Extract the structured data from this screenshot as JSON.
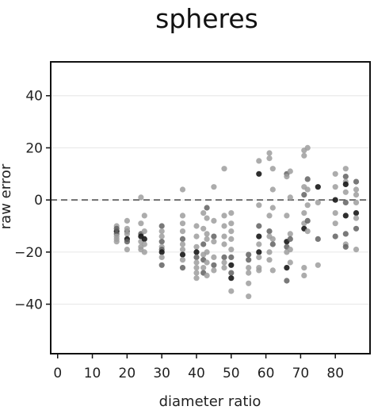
{
  "chart_data": {
    "type": "scatter",
    "title": "spheres",
    "xlabel": "diameter ratio",
    "ylabel": "raw error",
    "xlim": [
      -2,
      90
    ],
    "ylim": [
      -59,
      53
    ],
    "x_ticks": [
      0,
      10,
      20,
      30,
      40,
      50,
      60,
      70,
      80
    ],
    "y_ticks": [
      -40,
      -20,
      0,
      20,
      40
    ],
    "grid": "horizontal",
    "reference_line": {
      "y": 0,
      "style": "dashed"
    },
    "colors": {
      "light": "#9e9e9e",
      "medium": "#616161",
      "dark": "#1c1c1c"
    },
    "series": [
      {
        "points": [
          [
            17,
            -12,
            2
          ],
          [
            17,
            -13,
            1
          ],
          [
            17,
            -14,
            0
          ],
          [
            17,
            -15,
            0
          ],
          [
            17,
            -10,
            0
          ],
          [
            17,
            -16,
            0
          ],
          [
            17,
            -11,
            1
          ],
          [
            20,
            -8,
            0
          ],
          [
            20,
            -12,
            1
          ],
          [
            20,
            -13,
            0
          ],
          [
            20,
            -15,
            2
          ],
          [
            20,
            -16,
            1
          ],
          [
            20,
            -19,
            0
          ],
          [
            20,
            -11,
            0
          ],
          [
            24,
            1,
            0
          ],
          [
            24,
            -9,
            0
          ],
          [
            24,
            -13,
            1
          ],
          [
            24,
            -14,
            2
          ],
          [
            24,
            -16,
            0
          ],
          [
            24,
            -18,
            0
          ],
          [
            24,
            -19,
            0
          ],
          [
            25,
            -6,
            0
          ],
          [
            25,
            -12,
            0
          ],
          [
            25,
            -15,
            2
          ],
          [
            25,
            -17,
            0
          ],
          [
            25,
            -20,
            0
          ],
          [
            30,
            -10,
            1
          ],
          [
            30,
            -12,
            0
          ],
          [
            30,
            -14,
            0
          ],
          [
            30,
            -16,
            1
          ],
          [
            30,
            -18,
            0
          ],
          [
            30,
            -19,
            1
          ],
          [
            30,
            -20,
            2
          ],
          [
            30,
            -22,
            0
          ],
          [
            30,
            -25,
            1
          ],
          [
            36,
            4,
            0
          ],
          [
            36,
            -6,
            0
          ],
          [
            36,
            -9,
            0
          ],
          [
            36,
            -12,
            0
          ],
          [
            36,
            -15,
            1
          ],
          [
            36,
            -17,
            0
          ],
          [
            36,
            -19,
            0
          ],
          [
            36,
            -21,
            2
          ],
          [
            36,
            -23,
            0
          ],
          [
            36,
            -26,
            1
          ],
          [
            40,
            -10,
            0
          ],
          [
            40,
            -14,
            0
          ],
          [
            40,
            -18,
            0
          ],
          [
            40,
            -20,
            2
          ],
          [
            40,
            -22,
            1
          ],
          [
            40,
            -24,
            0
          ],
          [
            40,
            -26,
            0
          ],
          [
            40,
            -28,
            0
          ],
          [
            40,
            -30,
            0
          ],
          [
            42,
            -5,
            0
          ],
          [
            42,
            -11,
            0
          ],
          [
            42,
            -17,
            1
          ],
          [
            42,
            -21,
            0
          ],
          [
            42,
            -23,
            1
          ],
          [
            42,
            -26,
            0
          ],
          [
            42,
            -28,
            1
          ],
          [
            43,
            -3,
            1
          ],
          [
            43,
            -7,
            0
          ],
          [
            43,
            -13,
            0
          ],
          [
            43,
            -15,
            0
          ],
          [
            43,
            -20,
            0
          ],
          [
            43,
            -24,
            0
          ],
          [
            43,
            -29,
            0
          ],
          [
            45,
            5,
            0
          ],
          [
            45,
            -8,
            0
          ],
          [
            45,
            -14,
            1
          ],
          [
            45,
            -16,
            0
          ],
          [
            45,
            -22,
            0
          ],
          [
            45,
            -25,
            1
          ],
          [
            45,
            -27,
            0
          ],
          [
            48,
            12,
            0
          ],
          [
            48,
            -6,
            0
          ],
          [
            48,
            -10,
            0
          ],
          [
            48,
            -14,
            0
          ],
          [
            48,
            -17,
            0
          ],
          [
            48,
            -22,
            1
          ],
          [
            48,
            -24,
            0
          ],
          [
            48,
            -26,
            0
          ],
          [
            50,
            -5,
            0
          ],
          [
            50,
            -9,
            0
          ],
          [
            50,
            -12,
            0
          ],
          [
            50,
            -15,
            0
          ],
          [
            50,
            -19,
            0
          ],
          [
            50,
            -22,
            1
          ],
          [
            50,
            -25,
            2
          ],
          [
            50,
            -28,
            1
          ],
          [
            50,
            -30,
            2
          ],
          [
            50,
            -35,
            0
          ],
          [
            55,
            -21,
            1
          ],
          [
            55,
            -23,
            1
          ],
          [
            55,
            -26,
            0
          ],
          [
            55,
            -28,
            0
          ],
          [
            55,
            -32,
            0
          ],
          [
            55,
            -37,
            0
          ],
          [
            58,
            15,
            0
          ],
          [
            58,
            10,
            2
          ],
          [
            58,
            -2,
            0
          ],
          [
            58,
            -10,
            1
          ],
          [
            58,
            -14,
            2
          ],
          [
            58,
            -17,
            0
          ],
          [
            58,
            -20,
            2
          ],
          [
            58,
            -26,
            0
          ],
          [
            58,
            -27,
            0
          ],
          [
            58,
            -22,
            0
          ],
          [
            61,
            16,
            0
          ],
          [
            61,
            18,
            0
          ],
          [
            61,
            -6,
            0
          ],
          [
            61,
            -12,
            1
          ],
          [
            61,
            -14,
            0
          ],
          [
            61,
            -20,
            0
          ],
          [
            61,
            -23,
            0
          ],
          [
            62,
            12,
            0
          ],
          [
            62,
            4,
            0
          ],
          [
            62,
            -3,
            0
          ],
          [
            62,
            -15,
            0
          ],
          [
            62,
            -17,
            1
          ],
          [
            62,
            -27,
            0
          ],
          [
            66,
            10,
            1
          ],
          [
            66,
            9,
            0
          ],
          [
            66,
            -6,
            0
          ],
          [
            66,
            -16,
            2
          ],
          [
            66,
            -18,
            1
          ],
          [
            66,
            -20,
            0
          ],
          [
            66,
            -26,
            2
          ],
          [
            66,
            -31,
            1
          ],
          [
            67,
            11,
            0
          ],
          [
            67,
            1,
            0
          ],
          [
            67,
            -13,
            0
          ],
          [
            67,
            -15,
            1
          ],
          [
            67,
            -19,
            0
          ],
          [
            67,
            -24,
            0
          ],
          [
            71,
            19,
            0
          ],
          [
            71,
            17,
            0
          ],
          [
            71,
            5,
            0
          ],
          [
            71,
            2,
            1
          ],
          [
            71,
            -5,
            0
          ],
          [
            71,
            -9,
            0
          ],
          [
            71,
            -11,
            2
          ],
          [
            71,
            -26,
            0
          ],
          [
            71,
            -29,
            0
          ],
          [
            72,
            20,
            0
          ],
          [
            72,
            8,
            1
          ],
          [
            72,
            4,
            0
          ],
          [
            72,
            -2,
            0
          ],
          [
            72,
            -8,
            1
          ],
          [
            72,
            -12,
            0
          ],
          [
            75,
            5,
            2
          ],
          [
            75,
            -1,
            0
          ],
          [
            75,
            -15,
            1
          ],
          [
            75,
            -25,
            0
          ],
          [
            80,
            10,
            0
          ],
          [
            80,
            5,
            0
          ],
          [
            80,
            0,
            2
          ],
          [
            80,
            -5,
            0
          ],
          [
            80,
            -9,
            0
          ],
          [
            80,
            -14,
            1
          ],
          [
            83,
            12,
            0
          ],
          [
            83,
            9,
            1
          ],
          [
            83,
            7,
            0
          ],
          [
            83,
            6,
            2
          ],
          [
            83,
            3,
            0
          ],
          [
            83,
            -1,
            1
          ],
          [
            83,
            -6,
            2
          ],
          [
            83,
            -13,
            1
          ],
          [
            83,
            -17,
            0
          ],
          [
            83,
            -18,
            1
          ],
          [
            86,
            7,
            1
          ],
          [
            86,
            4,
            0
          ],
          [
            86,
            2,
            0
          ],
          [
            86,
            -1,
            0
          ],
          [
            86,
            -5,
            2
          ],
          [
            86,
            -7,
            0
          ],
          [
            86,
            -11,
            1
          ],
          [
            86,
            -19,
            0
          ]
        ]
      }
    ]
  }
}
